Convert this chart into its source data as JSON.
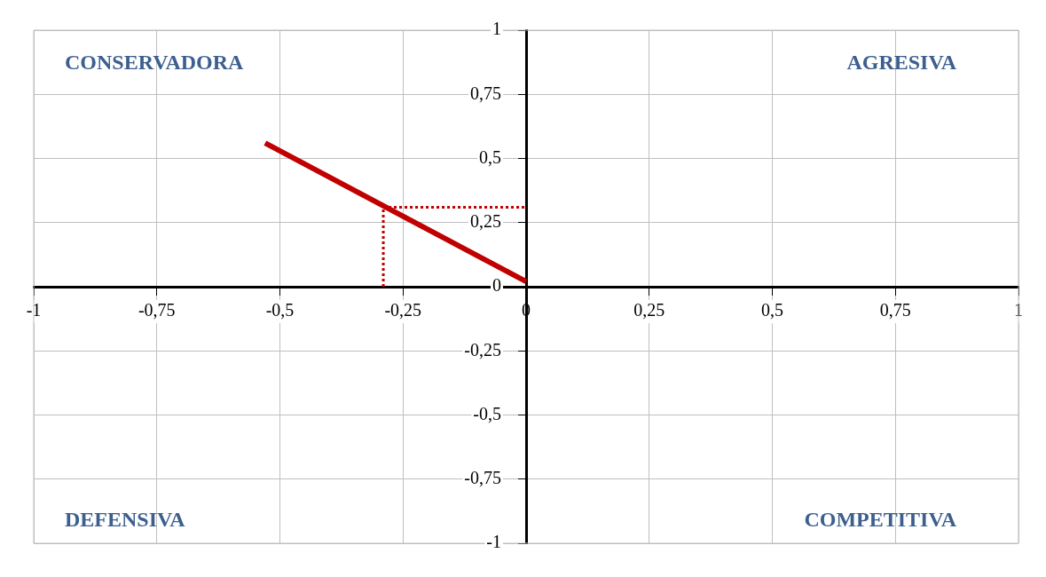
{
  "chart_data": {
    "type": "line",
    "xlim": [
      -1,
      1
    ],
    "ylim": [
      -1,
      1
    ],
    "xticks": [
      -1,
      {
        "value": -0.75,
        "label": "-0,75"
      },
      {
        "value": -0.5,
        "label": "-0,5"
      },
      {
        "value": -0.25,
        "label": "-0,25"
      },
      0,
      {
        "value": 0.25,
        "label": "0,25"
      },
      {
        "value": 0.5,
        "label": "0,5"
      },
      {
        "value": 0.75,
        "label": "0,75"
      },
      1
    ],
    "yticks": [
      -1,
      {
        "value": -0.75,
        "label": "-0,75"
      },
      {
        "value": -0.5,
        "label": "-0,5"
      },
      {
        "value": -0.25,
        "label": "-0,25"
      },
      0,
      {
        "value": 0.25,
        "label": "0,25"
      },
      {
        "value": 0.5,
        "label": "0,5"
      },
      {
        "value": 0.75,
        "label": "0,75"
      },
      1
    ],
    "grid": true,
    "legend": false,
    "marker": "none",
    "series": [
      {
        "color": "#c00000",
        "x": [
          -0.53,
          0
        ],
        "values": [
          0.56,
          0.02
        ],
        "line_style": "solid"
      },
      {
        "color": "#c00000",
        "x": [
          -0.29,
          -0.29
        ],
        "values": [
          0,
          0.31
        ],
        "line_style": "dotted"
      },
      {
        "color": "#c00000",
        "x": [
          -0.29,
          0
        ],
        "values": [
          0.31,
          0.31
        ],
        "line_style": "dotted"
      }
    ],
    "annotations": [
      "CONSERVADORA",
      "AGRESIVA",
      "DEFENSIVA",
      "COMPETITIVA"
    ]
  }
}
